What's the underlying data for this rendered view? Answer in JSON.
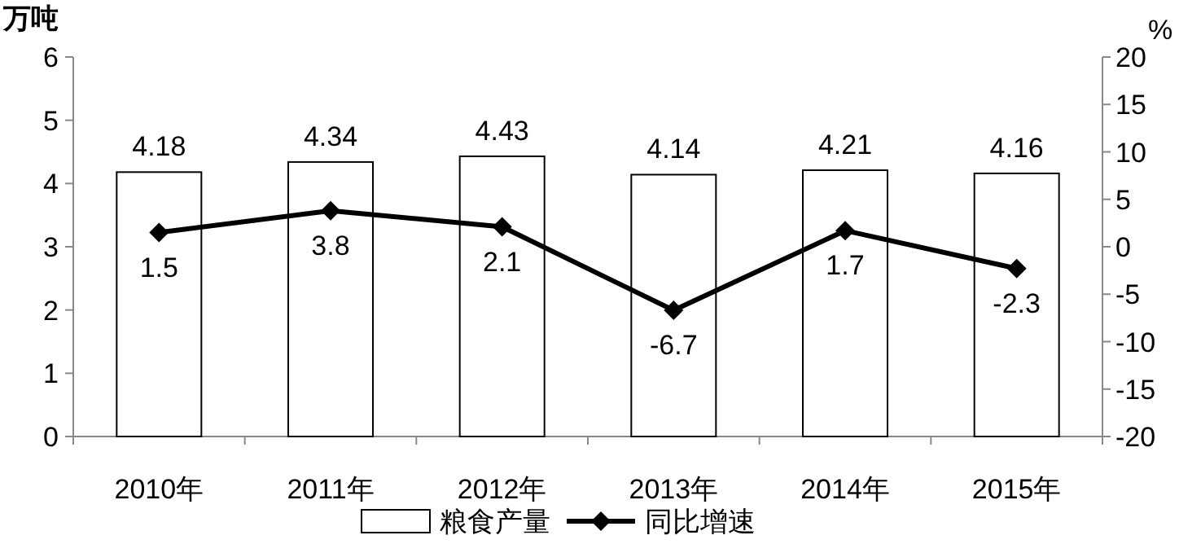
{
  "chart_data": {
    "type": "bar",
    "ylabel": "万吨",
    "y2label": "%",
    "categories": [
      "2010年",
      "2011年",
      "2012年",
      "2013年",
      "2014年",
      "2015年"
    ],
    "series": [
      {
        "name": "粮食产量",
        "color": "#ffffff",
        "values": [
          4.18,
          4.34,
          4.43,
          4.14,
          4.21,
          4.16
        ]
      },
      {
        "name": "同比增速",
        "type": "line",
        "axis": "y2",
        "color": "#000000",
        "values": [
          1.5,
          3.8,
          2.1,
          -6.7,
          1.7,
          -2.3
        ]
      }
    ],
    "ylim": [
      0,
      6
    ],
    "yticks": [
      0,
      1,
      2,
      3,
      4,
      5,
      6
    ],
    "y2lim": [
      -20,
      20
    ],
    "y2ticks": [
      -20,
      -15,
      -10,
      -5,
      0,
      5,
      10,
      15,
      20
    ],
    "marker": "diamond",
    "line_style": "solid",
    "data_labels": true,
    "legend": "bottom",
    "grid": false
  }
}
